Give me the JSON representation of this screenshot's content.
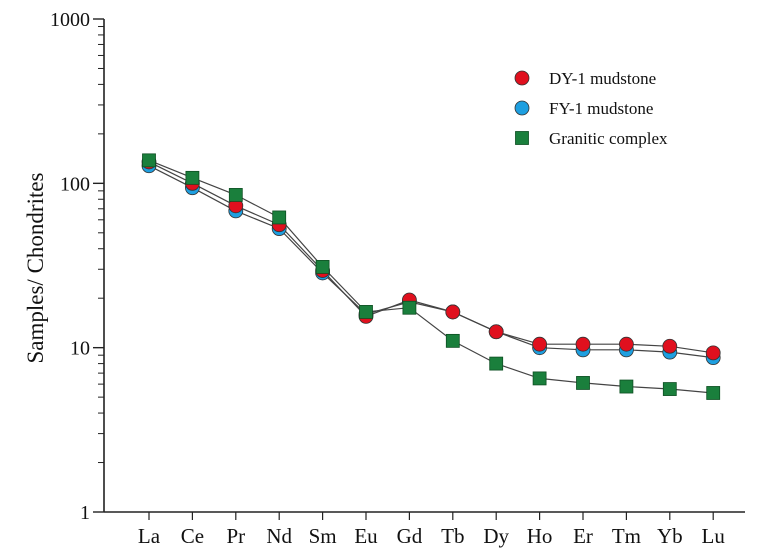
{
  "chart_data": {
    "type": "line",
    "ylabel": "Samples/ Chondrites",
    "xlabel": "",
    "yscale": "log",
    "ylim": [
      1,
      1000
    ],
    "yticks": [
      "1",
      "10",
      "100",
      "1000"
    ],
    "categories": [
      "La",
      "Ce",
      "Pr",
      "Nd",
      "Sm",
      "Eu",
      "Gd",
      "Tb",
      "Dy",
      "Ho",
      "Er",
      "Tm",
      "Yb",
      "Lu"
    ],
    "legend_position": "top-right",
    "grid": false,
    "series": [
      {
        "name": "DY-1 mudstone",
        "marker": "circle",
        "color": "#e0101e",
        "values": [
          135,
          100,
          73,
          56,
          29.5,
          15.5,
          19.5,
          16.5,
          12.5,
          10.5,
          10.5,
          10.5,
          10.2,
          9.3
        ]
      },
      {
        "name": "FY-1 mudstone",
        "marker": "circle",
        "color": "#1e9fe0",
        "values": [
          128,
          94,
          68,
          53,
          28.5,
          16.0,
          19.0,
          16.5,
          12.5,
          10.0,
          9.7,
          9.7,
          9.4,
          8.7
        ]
      },
      {
        "name": "Granitic complex",
        "marker": "square",
        "color": "#1a7f3c",
        "values": [
          138,
          108,
          85,
          62,
          31,
          16.5,
          17.5,
          11.0,
          8.0,
          6.5,
          6.1,
          5.8,
          5.6,
          5.3
        ]
      }
    ]
  }
}
